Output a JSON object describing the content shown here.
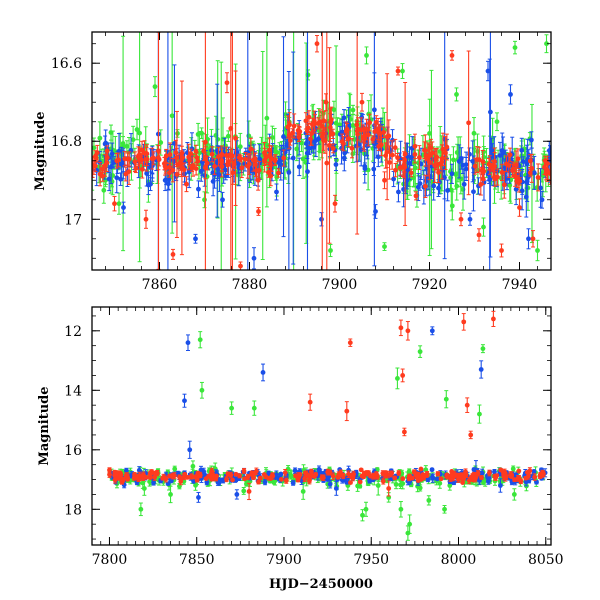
{
  "chart_data": [
    {
      "type": "scatter",
      "title": "",
      "xlabel": "",
      "ylabel": "Magnitude",
      "xlim": [
        7845,
        7947
      ],
      "ylim": [
        17.13,
        16.52
      ],
      "y_inverted": true,
      "x_ticks": [
        7860,
        7880,
        7900,
        7920,
        7940
      ],
      "y_ticks": [
        16.6,
        16.8,
        17
      ],
      "y_tick_labels": [
        "16.6",
        "16.8",
        "17"
      ],
      "grid": false,
      "legend": "none",
      "series": [
        {
          "color": "#ff3b1f",
          "segments": [
            {
              "x": [
                7845,
                7888
              ],
              "mean": 16.85,
              "sd": 0.018
            },
            {
              "x": [
                7888,
                7910
              ],
              "mean": 16.78,
              "sd": 0.02
            },
            {
              "x": [
                7910,
                7924
              ],
              "mean": 16.84,
              "sd": 0.025
            },
            {
              "x": [
                7930,
                7947
              ],
              "mean": 16.87,
              "sd": 0.02
            }
          ],
          "outliers": [
            [
              7850,
              16.96
            ],
            [
              7857,
              17.0
            ],
            [
              7863,
              17.09
            ],
            [
              7866,
              16.91
            ],
            [
              7875,
              16.65
            ],
            [
              7878,
              17.12
            ],
            [
              7882,
              16.98
            ],
            [
              7895,
              16.55
            ],
            [
              7897,
              16.7
            ],
            [
              7899,
              16.96
            ],
            [
              7905,
              16.7
            ],
            [
              7910,
              16.9
            ],
            [
              7913,
              16.62
            ],
            [
              7917,
              16.94
            ],
            [
              7922,
              16.88
            ],
            [
              7925,
              16.58
            ],
            [
              7927,
              17.0
            ],
            [
              7931,
              17.04
            ],
            [
              7936,
              17.08
            ],
            [
              7940,
              16.97
            ],
            [
              7943,
              17.05
            ]
          ]
        },
        {
          "color": "#1a4fe8",
          "segments": [
            {
              "x": [
                7845,
                7888
              ],
              "mean": 16.86,
              "sd": 0.025
            },
            {
              "x": [
                7888,
                7912
              ],
              "mean": 16.8,
              "sd": 0.025
            },
            {
              "x": [
                7912,
                7947
              ],
              "mean": 16.87,
              "sd": 0.03
            }
          ],
          "outliers": [
            [
              7852,
              16.97
            ],
            [
              7858,
              16.91
            ],
            [
              7868,
              17.05
            ],
            [
              7874,
              16.95
            ],
            [
              7881,
              17.1
            ],
            [
              7886,
              16.93
            ],
            [
              7896,
              17.0
            ],
            [
              7901,
              16.74
            ],
            [
              7908,
              16.98
            ],
            [
              7915,
              16.9
            ],
            [
              7922,
              16.92
            ],
            [
              7929,
              17.0
            ],
            [
              7933,
              16.62
            ],
            [
              7938,
              16.68
            ],
            [
              7942,
              17.05
            ],
            [
              7945,
              16.95
            ]
          ]
        },
        {
          "color": "#3ae63a",
          "segments": [
            {
              "x": [
                7845,
                7888
              ],
              "mean": 16.84,
              "sd": 0.03
            },
            {
              "x": [
                7888,
                7912
              ],
              "mean": 16.79,
              "sd": 0.035
            },
            {
              "x": [
                7912,
                7947
              ],
              "mean": 16.86,
              "sd": 0.035
            }
          ],
          "outliers": [
            [
              7848,
              16.9
            ],
            [
              7851,
              16.96
            ],
            [
              7855,
              16.77
            ],
            [
              7859,
              16.66
            ],
            [
              7864,
              16.78
            ],
            [
              7870,
              16.95
            ],
            [
              7880,
              16.9
            ],
            [
              7893,
              16.63
            ],
            [
              7898,
              17.08
            ],
            [
              7903,
              16.72
            ],
            [
              7906,
              16.58
            ],
            [
              7910,
              17.07
            ],
            [
              7914,
              16.62
            ],
            [
              7920,
              16.78
            ],
            [
              7926,
              16.68
            ],
            [
              7932,
              17.02
            ],
            [
              7935,
              16.75
            ],
            [
              7939,
              16.56
            ],
            [
              7944,
              17.08
            ],
            [
              7946,
              16.55
            ]
          ]
        }
      ]
    },
    {
      "type": "scatter",
      "title": "",
      "xlabel": "HJD−2450000",
      "ylabel": "Magnitude",
      "xlim": [
        7790,
        8053
      ],
      "ylim": [
        19.2,
        11.2
      ],
      "y_inverted": true,
      "x_ticks": [
        7800,
        7850,
        7900,
        7950,
        8000,
        8050
      ],
      "y_ticks": [
        12,
        14,
        16,
        18
      ],
      "y_tick_labels": [
        "12",
        "14",
        "16",
        "18"
      ],
      "grid": false,
      "legend": "none",
      "series": [
        {
          "color": "#ff3b1f",
          "segments": [
            {
              "x": [
                7800,
                8050
              ],
              "mean": 16.88,
              "sd": 0.08
            }
          ],
          "outliers": [
            [
              7915,
              14.4
            ],
            [
              7936,
              14.7
            ],
            [
              7938,
              12.4
            ],
            [
              7967,
              11.9
            ],
            [
              7968,
              13.5
            ],
            [
              7969,
              15.4
            ],
            [
              7971,
              12.0
            ],
            [
              8003,
              11.7
            ],
            [
              8005,
              14.5
            ],
            [
              8007,
              15.5
            ],
            [
              8020,
              11.6
            ],
            [
              7880,
              17.4
            ],
            [
              7960,
              17.3
            ]
          ]
        },
        {
          "color": "#1a4fe8",
          "segments": [
            {
              "x": [
                7800,
                8050
              ],
              "mean": 16.9,
              "sd": 0.1
            }
          ],
          "outliers": [
            [
              7843,
              14.35
            ],
            [
              7845,
              12.4
            ],
            [
              7846,
              16.0
            ],
            [
              7888,
              13.4
            ],
            [
              7985,
              12.0
            ],
            [
              8013,
              13.3
            ],
            [
              8010,
              16.7
            ],
            [
              7851,
              17.6
            ],
            [
              7873,
              17.5
            ],
            [
              7930,
              17.3
            ],
            [
              8024,
              17.2
            ]
          ]
        },
        {
          "color": "#3ae63a",
          "segments": [
            {
              "x": [
                7800,
                8050
              ],
              "mean": 16.92,
              "sd": 0.14
            }
          ],
          "outliers": [
            [
              7852,
              12.3
            ],
            [
              7853,
              14.0
            ],
            [
              7870,
              14.6
            ],
            [
              7883,
              14.6
            ],
            [
              7965,
              13.6
            ],
            [
              7978,
              12.7
            ],
            [
              7993,
              14.3
            ],
            [
              8012,
              14.8
            ],
            [
              8014,
              12.6
            ],
            [
              7818,
              18.0
            ],
            [
              7835,
              17.5
            ],
            [
              7945,
              18.2
            ],
            [
              7947,
              18.0
            ],
            [
              7954,
              17.2
            ],
            [
              7960,
              17.6
            ],
            [
              7967,
              18.0
            ],
            [
              7971,
              18.8
            ],
            [
              7972,
              18.5
            ],
            [
              7983,
              17.7
            ],
            [
              7992,
              18.0
            ],
            [
              7995,
              17.2
            ],
            [
              8032,
              17.5
            ],
            [
              7820,
              17.3
            ],
            [
              7911,
              17.4
            ]
          ]
        }
      ]
    }
  ]
}
